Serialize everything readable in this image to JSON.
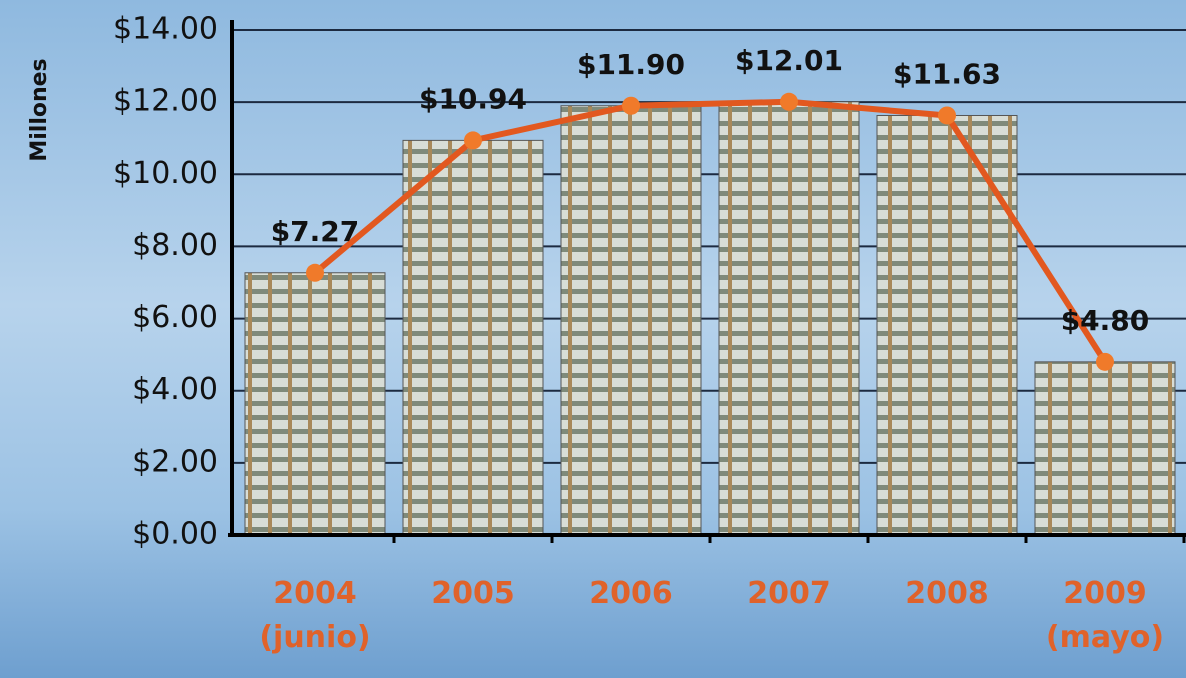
{
  "chart_data": {
    "type": "line",
    "y_label": "Millones",
    "categories": [
      "2004 (junio)",
      "2005",
      "2006",
      "2007",
      "2008",
      "2009 (mayo)"
    ],
    "values": [
      7.27,
      10.94,
      11.9,
      12.01,
      11.63,
      4.8
    ],
    "value_labels": [
      "$7.27",
      "$10.94",
      "$11.90",
      "$12.01",
      "$11.63",
      "$4.80"
    ],
    "color": "#e2581f",
    "ylim": [
      0,
      14
    ],
    "yticks": [
      {
        "value": 0,
        "label": "$0.00"
      },
      {
        "value": 2,
        "label": "$2.00"
      },
      {
        "value": 4,
        "label": "$4.00"
      },
      {
        "value": 6,
        "label": "$6.00"
      },
      {
        "value": 8,
        "label": "$8.00"
      },
      {
        "value": 10,
        "label": "$10.00"
      },
      {
        "value": 12,
        "label": "$12.00"
      },
      {
        "value": 14,
        "label": "$14.00"
      }
    ],
    "grid": true
  }
}
